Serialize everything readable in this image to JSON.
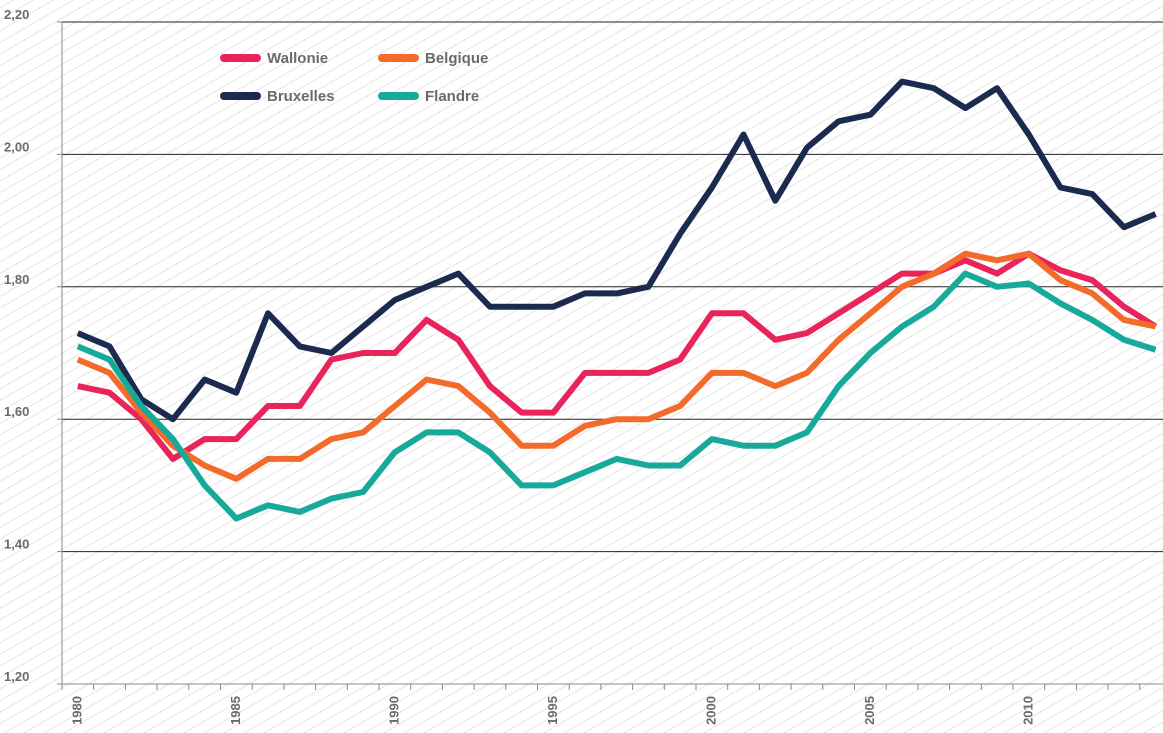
{
  "chart_data": {
    "type": "line",
    "categories": [
      "1980",
      null,
      null,
      null,
      null,
      "1985",
      null,
      null,
      null,
      null,
      "1990",
      null,
      null,
      null,
      null,
      "1995",
      null,
      null,
      null,
      null,
      "2000",
      null,
      null,
      null,
      null,
      "2005",
      null,
      null,
      null,
      null,
      "2010",
      null,
      null,
      null,
      null
    ],
    "series": [
      {
        "name": "Wallonie",
        "color": "#e8245a",
        "values": [
          1.65,
          1.64,
          1.6,
          1.54,
          1.57,
          1.57,
          1.62,
          1.62,
          1.69,
          1.7,
          1.7,
          1.75,
          1.72,
          1.65,
          1.61,
          1.61,
          1.67,
          1.67,
          1.67,
          1.69,
          1.76,
          1.76,
          1.72,
          1.73,
          1.76,
          1.79,
          1.82,
          1.82,
          1.84,
          1.82,
          1.85,
          1.825,
          1.81,
          1.77,
          1.74
        ]
      },
      {
        "name": "Belgique",
        "color": "#f26b2a",
        "values": [
          1.69,
          1.67,
          1.61,
          1.56,
          1.53,
          1.51,
          1.54,
          1.54,
          1.57,
          1.58,
          1.62,
          1.66,
          1.65,
          1.61,
          1.56,
          1.56,
          1.59,
          1.6,
          1.6,
          1.62,
          1.67,
          1.67,
          1.65,
          1.67,
          1.72,
          1.76,
          1.8,
          1.82,
          1.85,
          1.84,
          1.85,
          1.81,
          1.79,
          1.75,
          1.74
        ]
      },
      {
        "name": "Bruxelles",
        "color": "#1b2a4e",
        "values": [
          1.73,
          1.71,
          1.63,
          1.6,
          1.66,
          1.64,
          1.76,
          1.71,
          1.7,
          1.74,
          1.78,
          1.8,
          1.82,
          1.77,
          1.77,
          1.77,
          1.79,
          1.79,
          1.8,
          1.88,
          1.95,
          2.03,
          1.93,
          2.01,
          2.05,
          2.06,
          2.11,
          2.1,
          2.07,
          2.1,
          2.03,
          1.95,
          1.94,
          1.89,
          1.91
        ]
      },
      {
        "name": "Flandre",
        "color": "#17a99a",
        "values": [
          1.71,
          1.69,
          1.62,
          1.57,
          1.5,
          1.45,
          1.47,
          1.46,
          1.48,
          1.49,
          1.55,
          1.58,
          1.58,
          1.55,
          1.5,
          1.5,
          1.52,
          1.54,
          1.53,
          1.53,
          1.57,
          1.56,
          1.56,
          1.58,
          1.65,
          1.7,
          1.74,
          1.77,
          1.82,
          1.8,
          1.805,
          1.775,
          1.75,
          1.72,
          1.705
        ]
      }
    ],
    "ylim": [
      1.2,
      2.2
    ],
    "yticks": [
      {
        "value": 1.2,
        "label": "1,20"
      },
      {
        "value": 1.4,
        "label": "1,40"
      },
      {
        "value": 1.6,
        "label": "1,60"
      },
      {
        "value": 1.8,
        "label": "1,80"
      },
      {
        "value": 2.0,
        "label": "2,00"
      },
      {
        "value": 2.2,
        "label": "2,20"
      }
    ],
    "grid": true
  }
}
